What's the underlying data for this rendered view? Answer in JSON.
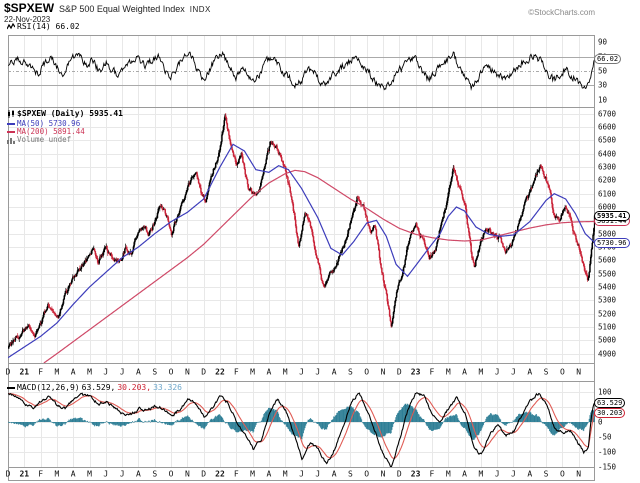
{
  "header": {
    "symbol": "$SPXEW",
    "name": "S&P 500 Equal Weighted Index",
    "exchange": "INDX",
    "date": "22-Nov-2023",
    "credit": "©StockCharts.com"
  },
  "rsi_panel": {
    "legend": "RSI(14) 66.02",
    "ticks": [
      90,
      70,
      50,
      30,
      10
    ]
  },
  "main_panel": {
    "symbol_legend": "$SPXEW (Daily) 5935.41",
    "ma50_legend": "MA(50) 5730.96",
    "ma200_legend": "MA(200) 5891.44",
    "volume_legend": "Volume undef",
    "ticks": [
      6700,
      6600,
      6500,
      6400,
      6300,
      6200,
      6100,
      6000,
      5800,
      5700,
      5600,
      5500,
      5400,
      5300,
      5200,
      5100,
      5000,
      4900
    ]
  },
  "macd_panel": {
    "legend_name": "MACD(12,26,9)",
    "macd_value": "63.529,",
    "signal_value": "30.203,",
    "hist_value": "33.326",
    "ticks": [
      100,
      0,
      -50,
      -100,
      -150
    ]
  },
  "x_axis": {
    "months": [
      "D",
      "21",
      "F",
      "M",
      "A",
      "M",
      "J",
      "J",
      "A",
      "S",
      "O",
      "N",
      "D",
      "22",
      "F",
      "M",
      "A",
      "M",
      "J",
      "J",
      "A",
      "S",
      "O",
      "N",
      "D",
      "23",
      "F",
      "M",
      "A",
      "M",
      "J",
      "J",
      "A",
      "S",
      "O",
      "N"
    ],
    "bold_labels": [
      "21",
      "22",
      "23"
    ]
  },
  "bubbles": [
    {
      "text": "66.02",
      "panel": "rsi",
      "value": 66.02,
      "border": "#777777",
      "bold": false,
      "z": 4
    },
    {
      "text": "5891.44",
      "panel": "main",
      "value": 5891.44,
      "border": "#cc3355",
      "bold": false,
      "z": 3
    },
    {
      "text": "5935.41",
      "panel": "main",
      "value": 5935.41,
      "border": "#000000",
      "bold": true,
      "z": 5
    },
    {
      "text": "5730.96",
      "panel": "main",
      "value": 5730.96,
      "border": "#3d3dbb",
      "bold": false,
      "z": 4
    },
    {
      "text": "63.529",
      "panel": "macd",
      "value": 63.529,
      "border": "#000000",
      "bold": false,
      "z": 5
    },
    {
      "text": "30.203",
      "panel": "macd",
      "value": 30.203,
      "border": "#cc2233",
      "bold": false,
      "z": 4
    }
  ],
  "colors": {
    "up_candle": "#000000",
    "down_candle": "#c92338",
    "ma50": "#3d3dbb",
    "ma200": "#cf4a68",
    "macd_line": "#000000",
    "signal_line": "#e05c55",
    "histogram": "#2f7f96",
    "hist_legend_text": "#6fa8cc",
    "grid": "#e8e8e8",
    "frame": "#9a9a9a",
    "refline": "#aaaaaa",
    "rsi_line": "#000000"
  },
  "chart_data": {
    "type": "candlestick",
    "symbol": "$SPXEW",
    "frequency": "daily",
    "x_range_months": [
      "Dec-2020",
      "Nov-2023"
    ],
    "price_ylim": [
      4830,
      6750
    ],
    "price_grid_step": 100,
    "rsi_ylim": [
      0,
      100
    ],
    "macd_ylim": [
      -170,
      120
    ],
    "bars_per_month": 21,
    "last_values": {
      "close": 5935.41,
      "ma50": 5730.96,
      "ma200": 5891.44,
      "rsi14": 66.02,
      "macd": 63.529,
      "macd_signal": 30.203,
      "macd_hist": 33.326
    },
    "close_waypoints": [
      [
        0,
        4950
      ],
      [
        0.4,
        5010
      ],
      [
        0.9,
        5060
      ],
      [
        1.3,
        5100
      ],
      [
        1.6,
        5030
      ],
      [
        2,
        5120
      ],
      [
        2.4,
        5280
      ],
      [
        2.7,
        5220
      ],
      [
        3.1,
        5180
      ],
      [
        3.5,
        5340
      ],
      [
        4,
        5470
      ],
      [
        4.5,
        5560
      ],
      [
        4.9,
        5620
      ],
      [
        5.2,
        5680
      ],
      [
        5.5,
        5590
      ],
      [
        6,
        5690
      ],
      [
        6.4,
        5620
      ],
      [
        6.8,
        5580
      ],
      [
        7.2,
        5700
      ],
      [
        7.5,
        5640
      ],
      [
        7.9,
        5800
      ],
      [
        8.3,
        5860
      ],
      [
        8.6,
        5790
      ],
      [
        9,
        5900
      ],
      [
        9.3,
        6010
      ],
      [
        9.7,
        5930
      ],
      [
        10,
        5800
      ],
      [
        10.4,
        5950
      ],
      [
        10.8,
        6090
      ],
      [
        11.2,
        6200
      ],
      [
        11.5,
        6280
      ],
      [
        11.8,
        6100
      ],
      [
        12.1,
        6050
      ],
      [
        12.5,
        6250
      ],
      [
        12.9,
        6400
      ],
      [
        13.3,
        6680
      ],
      [
        13.6,
        6480
      ],
      [
        14,
        6320
      ],
      [
        14.3,
        6400
      ],
      [
        14.7,
        6150
      ],
      [
        15.1,
        6080
      ],
      [
        15.4,
        6120
      ],
      [
        15.8,
        6350
      ],
      [
        16.1,
        6500
      ],
      [
        16.5,
        6440
      ],
      [
        17,
        6280
      ],
      [
        17.4,
        6050
      ],
      [
        17.8,
        5720
      ],
      [
        18.2,
        5950
      ],
      [
        18.5,
        5890
      ],
      [
        18.9,
        5640
      ],
      [
        19.3,
        5400
      ],
      [
        19.7,
        5500
      ],
      [
        20.1,
        5560
      ],
      [
        20.6,
        5720
      ],
      [
        21.1,
        5930
      ],
      [
        21.4,
        6080
      ],
      [
        21.8,
        5990
      ],
      [
        22.2,
        5820
      ],
      [
        22.5,
        5870
      ],
      [
        22.8,
        5580
      ],
      [
        23.2,
        5330
      ],
      [
        23.5,
        5100
      ],
      [
        23.8,
        5340
      ],
      [
        24.2,
        5520
      ],
      [
        24.6,
        5780
      ],
      [
        25,
        5880
      ],
      [
        25.4,
        5760
      ],
      [
        25.8,
        5610
      ],
      [
        26.2,
        5700
      ],
      [
        26.6,
        5900
      ],
      [
        27,
        6100
      ],
      [
        27.3,
        6290
      ],
      [
        27.6,
        6160
      ],
      [
        28,
        6010
      ],
      [
        28.4,
        5650
      ],
      [
        28.6,
        5560
      ],
      [
        28.9,
        5720
      ],
      [
        29.3,
        5840
      ],
      [
        29.7,
        5800
      ],
      [
        30.1,
        5770
      ],
      [
        30.5,
        5680
      ],
      [
        30.8,
        5720
      ],
      [
        31.2,
        5830
      ],
      [
        31.6,
        6000
      ],
      [
        32,
        6110
      ],
      [
        32.4,
        6260
      ],
      [
        32.6,
        6310
      ],
      [
        32.9,
        6240
      ],
      [
        33.2,
        6100
      ],
      [
        33.5,
        5930
      ],
      [
        33.8,
        5900
      ],
      [
        34.1,
        6000
      ],
      [
        34.4,
        5940
      ],
      [
        34.7,
        5790
      ],
      [
        35,
        5690
      ],
      [
        35.3,
        5560
      ],
      [
        35.55,
        5430
      ],
      [
        35.8,
        5700
      ],
      [
        36,
        5935.41
      ]
    ],
    "ma50_waypoints": [
      [
        0,
        4870
      ],
      [
        1,
        4950
      ],
      [
        2,
        5030
      ],
      [
        3,
        5130
      ],
      [
        4,
        5270
      ],
      [
        5,
        5400
      ],
      [
        6,
        5510
      ],
      [
        7,
        5620
      ],
      [
        8,
        5700
      ],
      [
        9,
        5800
      ],
      [
        10,
        5890
      ],
      [
        11,
        5960
      ],
      [
        12,
        6060
      ],
      [
        13,
        6300
      ],
      [
        13.8,
        6470
      ],
      [
        14.5,
        6420
      ],
      [
        15.2,
        6280
      ],
      [
        16,
        6260
      ],
      [
        16.6,
        6310
      ],
      [
        17.2,
        6280
      ],
      [
        18,
        6140
      ],
      [
        19,
        5920
      ],
      [
        19.8,
        5690
      ],
      [
        20.5,
        5640
      ],
      [
        21.2,
        5740
      ],
      [
        22,
        5880
      ],
      [
        22.6,
        5900
      ],
      [
        23.2,
        5780
      ],
      [
        23.8,
        5570
      ],
      [
        24.5,
        5480
      ],
      [
        25,
        5560
      ],
      [
        25.8,
        5690
      ],
      [
        26.5,
        5800
      ],
      [
        27,
        5930
      ],
      [
        27.5,
        6000
      ],
      [
        28,
        5970
      ],
      [
        28.7,
        5850
      ],
      [
        29.5,
        5795
      ],
      [
        30.2,
        5780
      ],
      [
        31,
        5790
      ],
      [
        32,
        5890
      ],
      [
        33,
        6050
      ],
      [
        33.5,
        6100
      ],
      [
        34.2,
        6060
      ],
      [
        34.8,
        5950
      ],
      [
        35.4,
        5800
      ],
      [
        36,
        5730.96
      ]
    ],
    "ma200_waypoints": [
      [
        2.2,
        4830
      ],
      [
        3,
        4900
      ],
      [
        4,
        4990
      ],
      [
        5,
        5080
      ],
      [
        6,
        5170
      ],
      [
        7,
        5260
      ],
      [
        8,
        5350
      ],
      [
        9,
        5440
      ],
      [
        10,
        5530
      ],
      [
        11,
        5620
      ],
      [
        12,
        5720
      ],
      [
        13,
        5840
      ],
      [
        14,
        5960
      ],
      [
        15,
        6080
      ],
      [
        16,
        6180
      ],
      [
        17,
        6250
      ],
      [
        17.6,
        6275
      ],
      [
        18.2,
        6265
      ],
      [
        19,
        6220
      ],
      [
        20,
        6140
      ],
      [
        21,
        6060
      ],
      [
        22,
        5990
      ],
      [
        23,
        5910
      ],
      [
        24,
        5840
      ],
      [
        25,
        5795
      ],
      [
        26,
        5770
      ],
      [
        27,
        5752
      ],
      [
        28,
        5745
      ],
      [
        29,
        5752
      ],
      [
        30,
        5782
      ],
      [
        31,
        5812
      ],
      [
        32,
        5842
      ],
      [
        33,
        5866
      ],
      [
        34,
        5882
      ],
      [
        35,
        5889
      ],
      [
        36,
        5891.44
      ]
    ],
    "rsi_waypoints": [
      [
        0,
        60
      ],
      [
        0.5,
        68
      ],
      [
        1,
        62
      ],
      [
        1.5,
        55
      ],
      [
        1.8,
        45
      ],
      [
        2.2,
        60
      ],
      [
        2.6,
        68
      ],
      [
        3,
        55
      ],
      [
        3.3,
        42
      ],
      [
        3.6,
        58
      ],
      [
        4,
        68
      ],
      [
        4.4,
        72
      ],
      [
        4.8,
        60
      ],
      [
        5.2,
        65
      ],
      [
        5.6,
        48
      ],
      [
        6,
        62
      ],
      [
        6.4,
        50
      ],
      [
        6.8,
        42
      ],
      [
        7.2,
        55
      ],
      [
        7.6,
        65
      ],
      [
        8,
        68
      ],
      [
        8.4,
        55
      ],
      [
        8.8,
        65
      ],
      [
        9.2,
        70
      ],
      [
        9.6,
        52
      ],
      [
        10,
        42
      ],
      [
        10.4,
        58
      ],
      [
        10.8,
        68
      ],
      [
        11.2,
        72
      ],
      [
        11.6,
        52
      ],
      [
        12,
        38
      ],
      [
        12.4,
        55
      ],
      [
        12.8,
        68
      ],
      [
        13.2,
        72
      ],
      [
        13.6,
        50
      ],
      [
        14,
        42
      ],
      [
        14.4,
        58
      ],
      [
        14.8,
        40
      ],
      [
        15.2,
        38
      ],
      [
        15.6,
        55
      ],
      [
        16,
        68
      ],
      [
        16.4,
        62
      ],
      [
        16.8,
        50
      ],
      [
        17.2,
        42
      ],
      [
        17.6,
        30
      ],
      [
        18,
        35
      ],
      [
        18.4,
        55
      ],
      [
        18.8,
        48
      ],
      [
        19.2,
        30
      ],
      [
        19.6,
        38
      ],
      [
        20,
        45
      ],
      [
        20.5,
        58
      ],
      [
        21,
        65
      ],
      [
        21.4,
        70
      ],
      [
        21.8,
        55
      ],
      [
        22.2,
        45
      ],
      [
        22.6,
        32
      ],
      [
        23,
        28
      ],
      [
        23.4,
        30
      ],
      [
        23.8,
        48
      ],
      [
        24.2,
        55
      ],
      [
        24.6,
        65
      ],
      [
        25,
        68
      ],
      [
        25.4,
        48
      ],
      [
        25.8,
        38
      ],
      [
        26.2,
        50
      ],
      [
        26.6,
        62
      ],
      [
        27,
        68
      ],
      [
        27.3,
        72
      ],
      [
        27.7,
        50
      ],
      [
        28,
        42
      ],
      [
        28.4,
        28
      ],
      [
        28.7,
        35
      ],
      [
        29,
        48
      ],
      [
        29.4,
        58
      ],
      [
        29.8,
        50
      ],
      [
        30.2,
        42
      ],
      [
        30.6,
        38
      ],
      [
        31,
        50
      ],
      [
        31.4,
        62
      ],
      [
        31.8,
        68
      ],
      [
        32.2,
        70
      ],
      [
        32.6,
        65
      ],
      [
        33,
        50
      ],
      [
        33.4,
        38
      ],
      [
        33.8,
        42
      ],
      [
        34.2,
        55
      ],
      [
        34.6,
        42
      ],
      [
        35,
        35
      ],
      [
        35.4,
        28
      ],
      [
        35.7,
        45
      ],
      [
        36,
        66.02
      ]
    ],
    "macd_waypoints": [
      [
        0,
        95
      ],
      [
        0.5,
        80
      ],
      [
        1,
        60
      ],
      [
        1.5,
        45
      ],
      [
        2,
        70
      ],
      [
        2.5,
        85
      ],
      [
        3,
        55
      ],
      [
        3.5,
        45
      ],
      [
        4,
        75
      ],
      [
        4.5,
        90
      ],
      [
        5,
        85
      ],
      [
        5.5,
        60
      ],
      [
        6,
        70
      ],
      [
        6.5,
        45
      ],
      [
        7,
        30
      ],
      [
        7.5,
        25
      ],
      [
        8,
        45
      ],
      [
        8.5,
        40
      ],
      [
        9,
        55
      ],
      [
        9.5,
        45
      ],
      [
        10,
        20
      ],
      [
        10.5,
        40
      ],
      [
        11,
        75
      ],
      [
        11.5,
        60
      ],
      [
        12,
        20
      ],
      [
        12.5,
        45
      ],
      [
        13,
        85
      ],
      [
        13.5,
        60
      ],
      [
        14,
        0
      ],
      [
        14.5,
        -40
      ],
      [
        15,
        -90
      ],
      [
        15.5,
        -60
      ],
      [
        16,
        30
      ],
      [
        16.5,
        75
      ],
      [
        17,
        40
      ],
      [
        17.5,
        -40
      ],
      [
        18,
        -120
      ],
      [
        18.5,
        -70
      ],
      [
        19,
        -90
      ],
      [
        19.5,
        -140
      ],
      [
        20,
        -90
      ],
      [
        20.5,
        -20
      ],
      [
        21,
        60
      ],
      [
        21.5,
        100
      ],
      [
        22,
        40
      ],
      [
        22.5,
        -30
      ],
      [
        23,
        -110
      ],
      [
        23.5,
        -150
      ],
      [
        24,
        -60
      ],
      [
        24.5,
        40
      ],
      [
        25,
        95
      ],
      [
        25.5,
        90
      ],
      [
        26,
        20
      ],
      [
        26.5,
        0
      ],
      [
        27,
        45
      ],
      [
        27.5,
        80
      ],
      [
        28,
        30
      ],
      [
        28.5,
        -80
      ],
      [
        29,
        -110
      ],
      [
        29.5,
        -40
      ],
      [
        30,
        -10
      ],
      [
        30.5,
        -45
      ],
      [
        31,
        -30
      ],
      [
        31.5,
        25
      ],
      [
        32,
        70
      ],
      [
        32.5,
        95
      ],
      [
        33,
        60
      ],
      [
        33.5,
        -20
      ],
      [
        34,
        -35
      ],
      [
        34.5,
        -30
      ],
      [
        35,
        -75
      ],
      [
        35.3,
        -100
      ],
      [
        35.6,
        -85
      ],
      [
        36,
        63.529
      ]
    ]
  }
}
